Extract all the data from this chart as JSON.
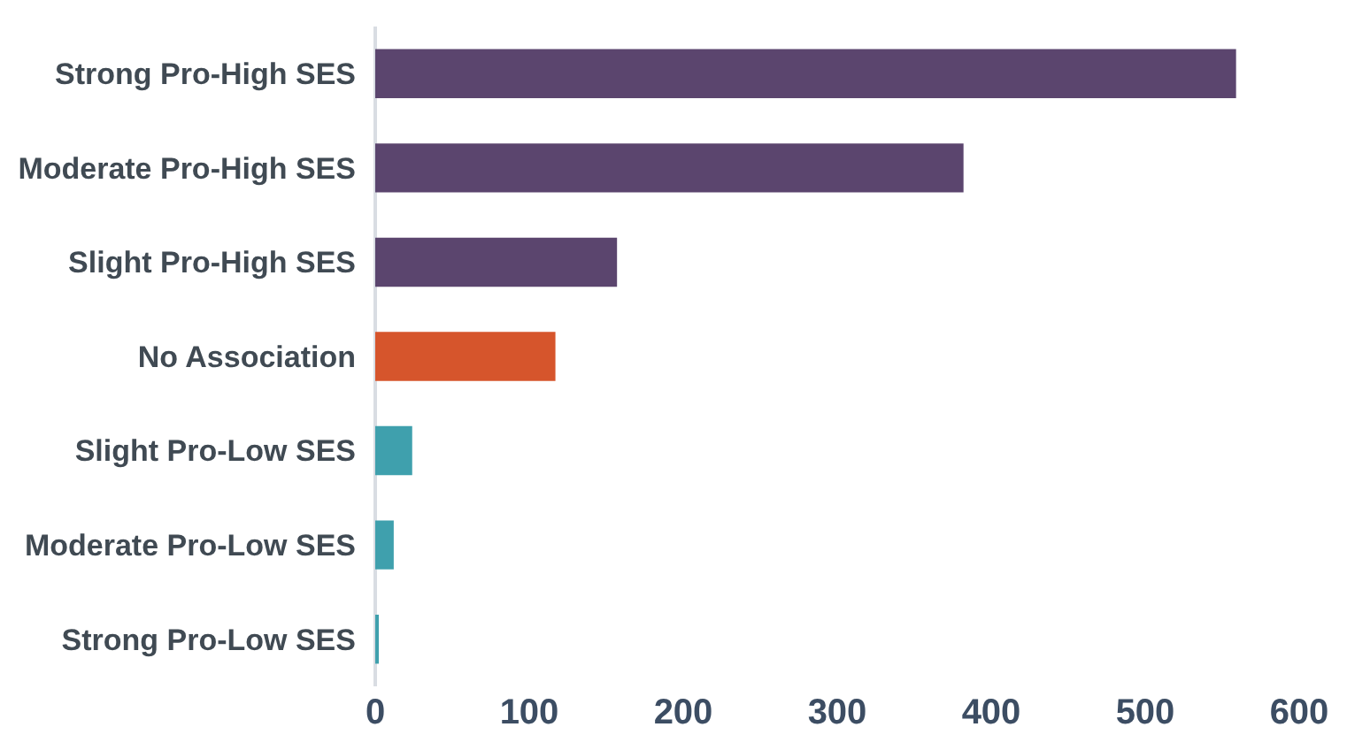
{
  "chart_data": {
    "type": "bar",
    "orientation": "horizontal",
    "categories": [
      "Strong Pro-High SES",
      "Moderate Pro-High SES",
      "Slight Pro-High SES",
      "No Association",
      "Slight Pro-Low SES",
      "Moderate Pro-Low SES",
      "Strong Pro-Low SES"
    ],
    "values": [
      559,
      382,
      157,
      117,
      24,
      12,
      2
    ],
    "colors": [
      "#5b456e",
      "#5b456e",
      "#5b456e",
      "#d6552c",
      "#3fa0ad",
      "#3fa0ad",
      "#3fa0ad"
    ],
    "xlim": [
      0,
      600
    ],
    "xticks": [
      0,
      100,
      200,
      300,
      400,
      500,
      600
    ]
  }
}
